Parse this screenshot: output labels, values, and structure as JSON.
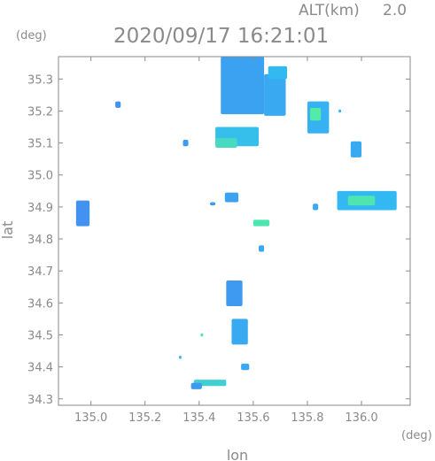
{
  "chart_data": {
    "type": "heatmap",
    "header": {
      "alt_label": "ALT(km)",
      "alt_value": "2.0"
    },
    "title": "2020/09/17 16:21:01",
    "xlabel": "lon",
    "ylabel": "lat",
    "x_unit": "(deg)",
    "y_unit": "(deg)",
    "xlim": [
      134.88,
      136.18
    ],
    "ylim": [
      34.28,
      35.37
    ],
    "x_ticks": [
      135.0,
      135.2,
      135.4,
      135.6,
      135.8,
      136.0
    ],
    "x_tick_labels": [
      "135.0",
      "135.2",
      "135.4",
      "135.6",
      "135.8",
      "136.0"
    ],
    "y_ticks": [
      34.3,
      34.4,
      34.5,
      34.6,
      34.7,
      34.8,
      34.9,
      35.0,
      35.1,
      35.2,
      35.3
    ],
    "y_tick_labels": [
      "34.3",
      "34.4",
      "34.5",
      "34.6",
      "34.7",
      "34.8",
      "34.9",
      "35.0",
      "35.1",
      "35.2",
      "35.3"
    ],
    "grid": false,
    "colors": {
      "low": "#4f6af0",
      "mid": "#33b9f2",
      "high": "#55f0a0",
      "axis": "#8a8a8a"
    },
    "cells": [
      {
        "lon": 135.56,
        "lat": 35.28,
        "dlon": 0.16,
        "dlat": 0.18,
        "level": 0.35
      },
      {
        "lon": 135.54,
        "lat": 35.12,
        "dlon": 0.16,
        "dlat": 0.06,
        "level": 0.55
      },
      {
        "lon": 135.5,
        "lat": 35.1,
        "dlon": 0.08,
        "dlat": 0.03,
        "level": 0.8
      },
      {
        "lon": 135.68,
        "lat": 35.25,
        "dlon": 0.08,
        "dlat": 0.13,
        "level": 0.4
      },
      {
        "lon": 135.69,
        "lat": 35.32,
        "dlon": 0.07,
        "dlat": 0.04,
        "level": 0.5
      },
      {
        "lon": 135.84,
        "lat": 35.18,
        "dlon": 0.08,
        "dlat": 0.1,
        "level": 0.45
      },
      {
        "lon": 135.83,
        "lat": 35.19,
        "dlon": 0.04,
        "dlat": 0.04,
        "level": 0.95
      },
      {
        "lon": 135.98,
        "lat": 35.08,
        "dlon": 0.04,
        "dlat": 0.05,
        "level": 0.4
      },
      {
        "lon": 136.02,
        "lat": 34.92,
        "dlon": 0.22,
        "dlat": 0.06,
        "level": 0.5
      },
      {
        "lon": 136.0,
        "lat": 34.92,
        "dlon": 0.1,
        "dlat": 0.03,
        "level": 0.9
      },
      {
        "lon": 134.97,
        "lat": 34.88,
        "dlon": 0.05,
        "dlat": 0.08,
        "level": 0.25
      },
      {
        "lon": 135.52,
        "lat": 34.93,
        "dlon": 0.05,
        "dlat": 0.03,
        "level": 0.35
      },
      {
        "lon": 135.63,
        "lat": 34.85,
        "dlon": 0.06,
        "dlat": 0.02,
        "level": 0.9
      },
      {
        "lon": 135.53,
        "lat": 34.63,
        "dlon": 0.06,
        "dlat": 0.08,
        "level": 0.3
      },
      {
        "lon": 135.55,
        "lat": 34.51,
        "dlon": 0.06,
        "dlat": 0.08,
        "level": 0.4
      },
      {
        "lon": 135.44,
        "lat": 34.35,
        "dlon": 0.12,
        "dlat": 0.02,
        "level": 0.7
      },
      {
        "lon": 135.39,
        "lat": 34.34,
        "dlon": 0.04,
        "dlat": 0.02,
        "level": 0.3
      },
      {
        "lon": 135.41,
        "lat": 34.5,
        "dlon": 0.01,
        "dlat": 0.01,
        "level": 0.9
      },
      {
        "lon": 135.33,
        "lat": 34.43,
        "dlon": 0.01,
        "dlat": 0.01,
        "level": 0.5
      },
      {
        "lon": 135.83,
        "lat": 34.9,
        "dlon": 0.02,
        "dlat": 0.02,
        "level": 0.4
      },
      {
        "lon": 135.63,
        "lat": 34.77,
        "dlon": 0.02,
        "dlat": 0.02,
        "level": 0.4
      },
      {
        "lon": 135.1,
        "lat": 35.22,
        "dlon": 0.02,
        "dlat": 0.02,
        "level": 0.25
      },
      {
        "lon": 135.92,
        "lat": 35.2,
        "dlon": 0.01,
        "dlat": 0.01,
        "level": 0.5
      },
      {
        "lon": 135.35,
        "lat": 35.1,
        "dlon": 0.02,
        "dlat": 0.02,
        "level": 0.3
      },
      {
        "lon": 135.45,
        "lat": 34.91,
        "dlon": 0.02,
        "dlat": 0.01,
        "level": 0.3
      },
      {
        "lon": 135.57,
        "lat": 34.4,
        "dlon": 0.03,
        "dlat": 0.02,
        "level": 0.4
      }
    ]
  }
}
